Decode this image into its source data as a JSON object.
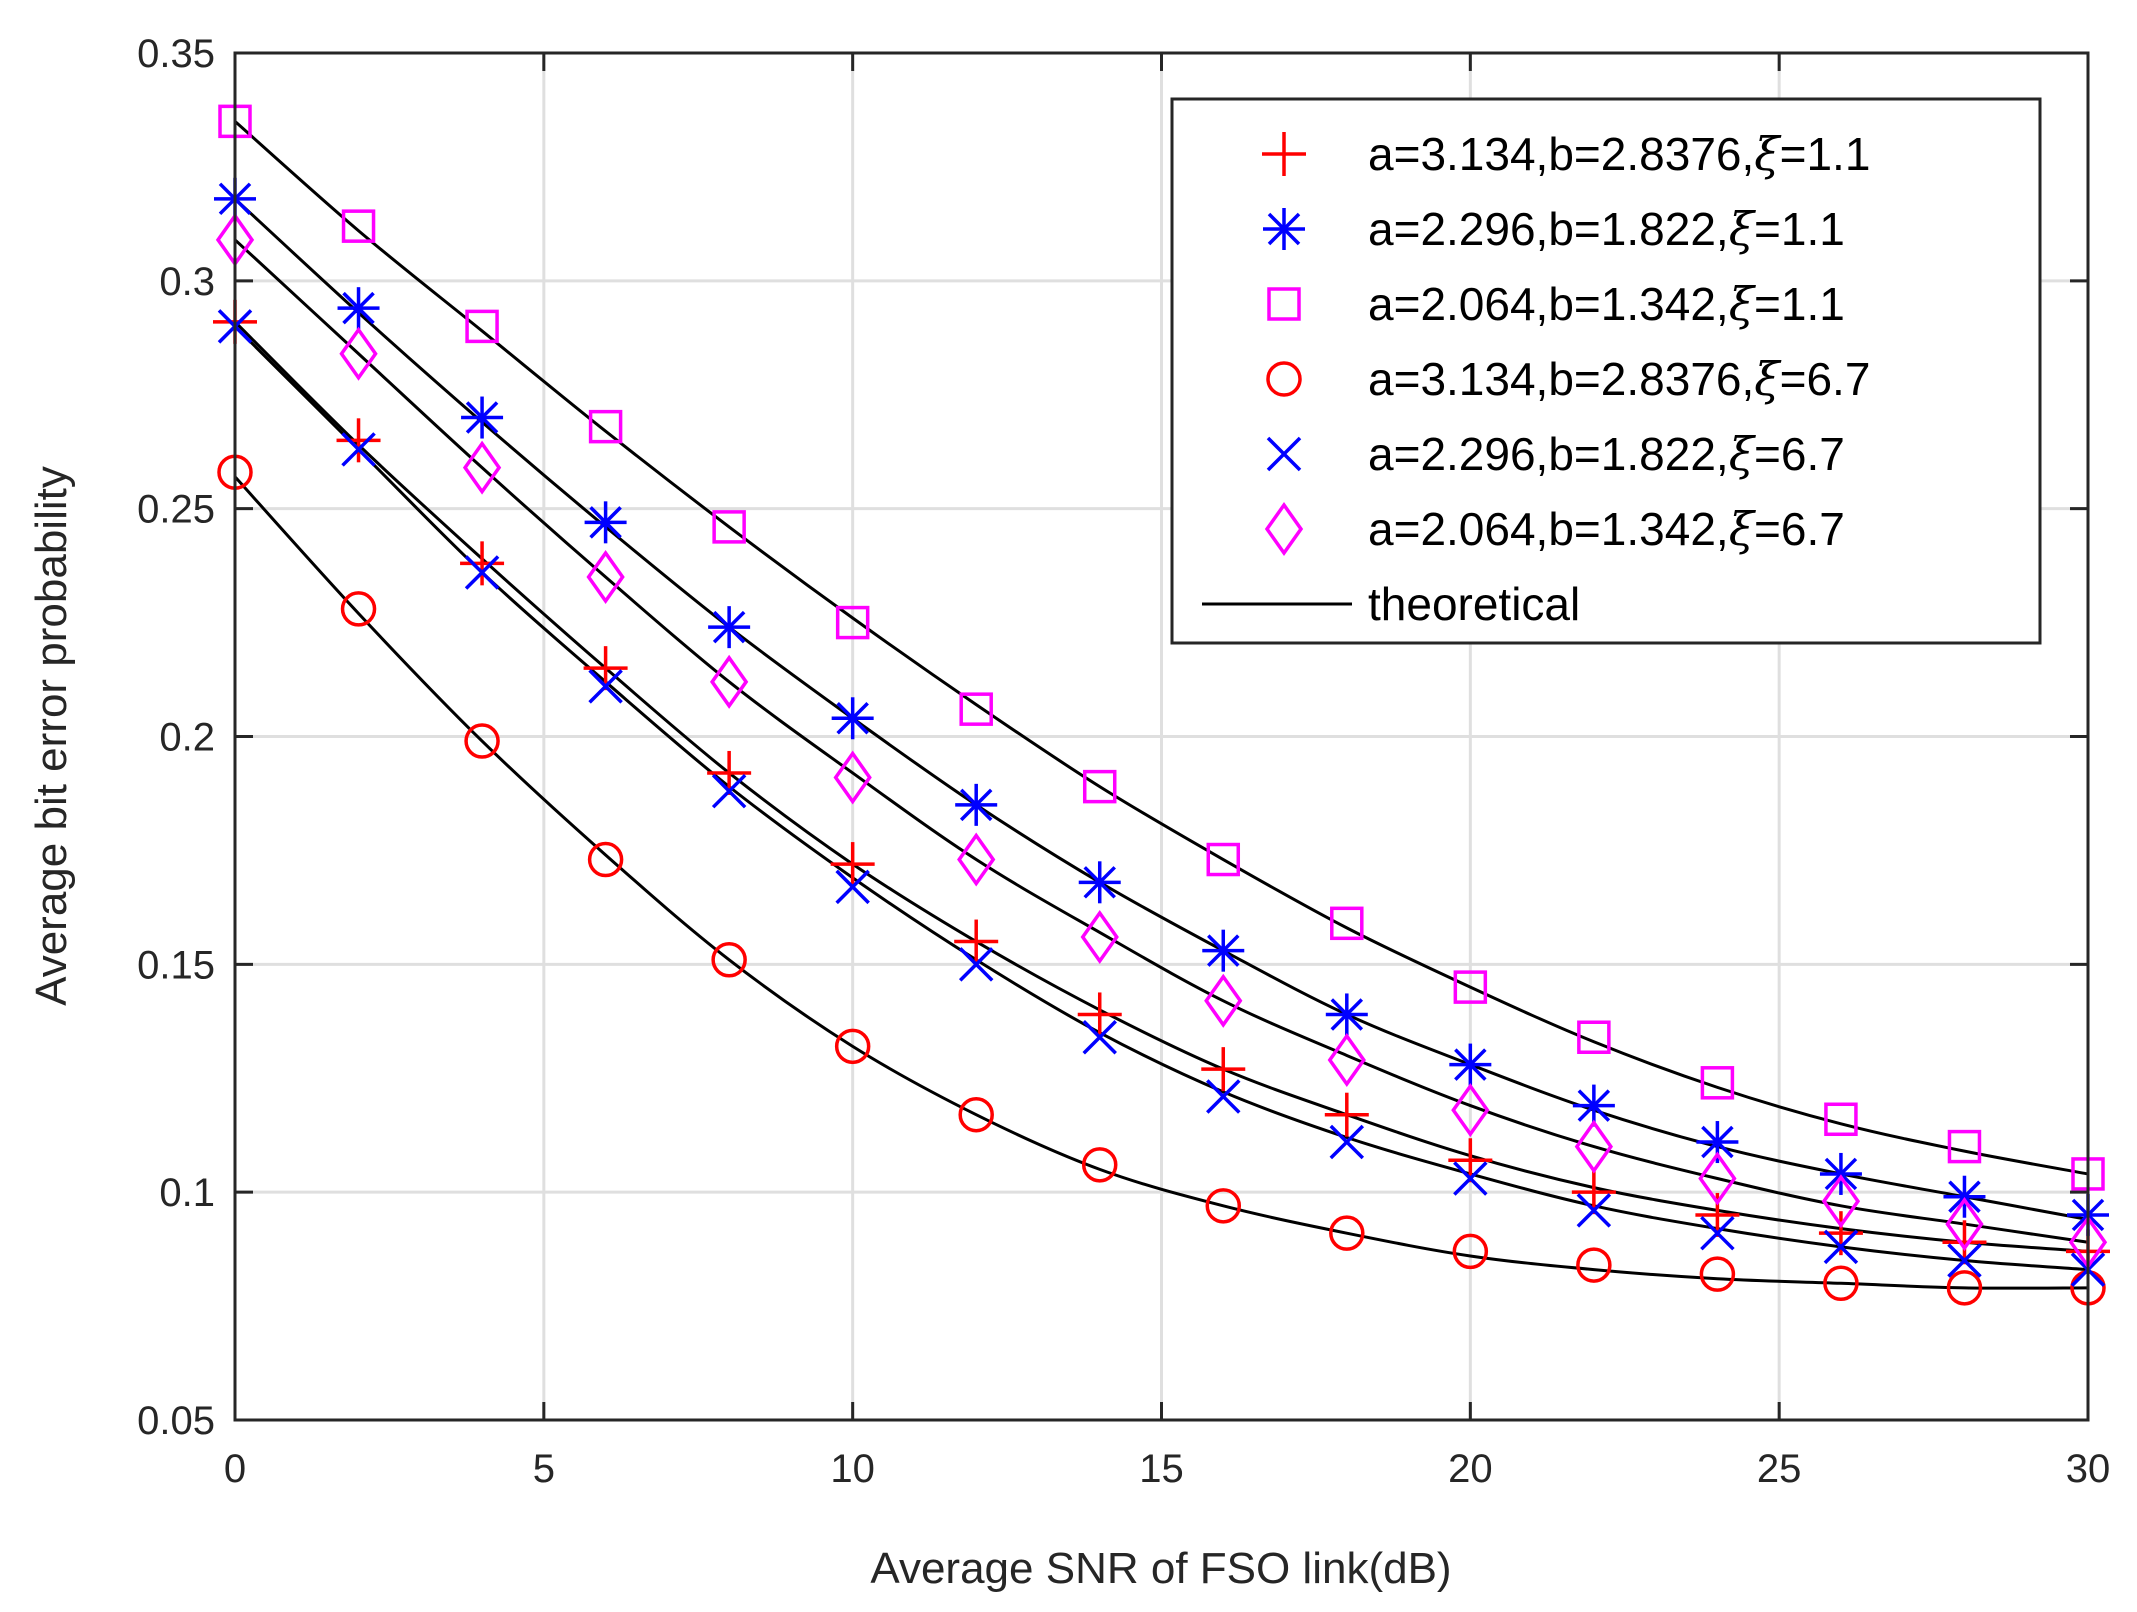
{
  "chart_data": {
    "type": "line",
    "title": "",
    "xlabel": "Average SNR of FSO link(dB)",
    "ylabel": "Average bit error probability",
    "xlim": [
      0,
      30
    ],
    "ylim": [
      0.05,
      0.35
    ],
    "grid": true,
    "legend_position": "top-right",
    "x_ticks": [
      0,
      5,
      10,
      15,
      20,
      25,
      30
    ],
    "x_tick_labels": [
      "0",
      "5",
      "10",
      "15",
      "20",
      "25",
      "30"
    ],
    "y_ticks": [
      0.05,
      0.1,
      0.15,
      0.2,
      0.25,
      0.3,
      0.35
    ],
    "y_tick_labels": [
      "0.05",
      "0.1",
      "0.15",
      "0.2",
      "0.25",
      "0.3",
      "0.35"
    ],
    "x": [
      0,
      2,
      4,
      6,
      8,
      10,
      12,
      14,
      16,
      18,
      20,
      22,
      24,
      26,
      28,
      30
    ],
    "series": [
      {
        "name": "a=3.134,b=2.8376,ξ=1.1",
        "label_main": "a=3.134,b=2.8376,",
        "label_xi": "ξ",
        "label_tail": "=1.1",
        "marker": "plus",
        "color": "#ff0000",
        "values": [
          0.291,
          0.265,
          0.238,
          0.215,
          0.192,
          0.172,
          0.155,
          0.139,
          0.127,
          0.117,
          0.107,
          0.1,
          0.095,
          0.091,
          0.089,
          0.087
        ]
      },
      {
        "name": "a=2.296,b=1.822,ξ=1.1",
        "label_main": "a=2.296,b=1.822,",
        "label_xi": "ξ",
        "label_tail": "=1.1",
        "marker": "asterisk",
        "color": "#0000ff",
        "values": [
          0.318,
          0.294,
          0.27,
          0.247,
          0.224,
          0.204,
          0.185,
          0.168,
          0.153,
          0.139,
          0.128,
          0.119,
          0.111,
          0.104,
          0.099,
          0.095
        ]
      },
      {
        "name": "a=2.064,b=1.342,ξ=1.1",
        "label_main": "a=2.064,b=1.342,",
        "label_xi": "ξ",
        "label_tail": "=1.1",
        "marker": "square",
        "color": "#ff00ff",
        "values": [
          0.335,
          0.312,
          0.29,
          0.268,
          0.246,
          0.225,
          0.206,
          0.189,
          0.173,
          0.159,
          0.145,
          0.134,
          0.124,
          0.116,
          0.11,
          0.104
        ]
      },
      {
        "name": "a=3.134,b=2.8376,ξ=6.7",
        "label_main": "a=3.134,b=2.8376,",
        "label_xi": "ξ",
        "label_tail": "=6.7",
        "marker": "circle",
        "color": "#ff0000",
        "values": [
          0.258,
          0.228,
          0.199,
          0.173,
          0.151,
          0.132,
          0.117,
          0.106,
          0.097,
          0.091,
          0.087,
          0.084,
          0.082,
          0.08,
          0.079,
          0.079
        ]
      },
      {
        "name": "a=2.296,b=1.822,ξ=6.7",
        "label_main": "a=2.296,b=1.822,",
        "label_xi": "ξ",
        "label_tail": "=6.7",
        "marker": "cross",
        "color": "#0000ff",
        "values": [
          0.29,
          0.263,
          0.236,
          0.211,
          0.188,
          0.167,
          0.15,
          0.134,
          0.121,
          0.111,
          0.103,
          0.096,
          0.091,
          0.088,
          0.085,
          0.083
        ]
      },
      {
        "name": "a=2.064,b=1.342,ξ=6.7",
        "label_main": "a=2.064,b=1.342,",
        "label_xi": "ξ",
        "label_tail": "=6.7",
        "marker": "diamond",
        "color": "#ff00ff",
        "values": [
          0.309,
          0.284,
          0.259,
          0.235,
          0.212,
          0.191,
          0.173,
          0.156,
          0.142,
          0.129,
          0.118,
          0.11,
          0.103,
          0.098,
          0.093,
          0.089
        ]
      }
    ],
    "theoretical": {
      "name": "theoretical",
      "color": "#000000",
      "curves": [
        [
          0.291,
          0.264,
          0.239,
          0.215,
          0.192,
          0.172,
          0.155,
          0.14,
          0.127,
          0.117,
          0.108,
          0.101,
          0.096,
          0.092,
          0.089,
          0.087
        ],
        [
          0.318,
          0.293,
          0.269,
          0.246,
          0.224,
          0.204,
          0.185,
          0.168,
          0.153,
          0.139,
          0.128,
          0.118,
          0.11,
          0.104,
          0.099,
          0.094
        ],
        [
          0.335,
          0.311,
          0.289,
          0.267,
          0.246,
          0.226,
          0.207,
          0.189,
          0.173,
          0.158,
          0.145,
          0.133,
          0.123,
          0.115,
          0.109,
          0.104
        ],
        [
          0.257,
          0.227,
          0.199,
          0.174,
          0.151,
          0.132,
          0.117,
          0.105,
          0.097,
          0.091,
          0.086,
          0.083,
          0.081,
          0.08,
          0.079,
          0.079
        ],
        [
          0.29,
          0.263,
          0.236,
          0.212,
          0.189,
          0.169,
          0.151,
          0.135,
          0.122,
          0.112,
          0.104,
          0.097,
          0.092,
          0.088,
          0.085,
          0.083
        ],
        [
          0.309,
          0.284,
          0.259,
          0.235,
          0.212,
          0.192,
          0.173,
          0.157,
          0.142,
          0.13,
          0.119,
          0.11,
          0.103,
          0.097,
          0.093,
          0.089
        ]
      ]
    }
  }
}
